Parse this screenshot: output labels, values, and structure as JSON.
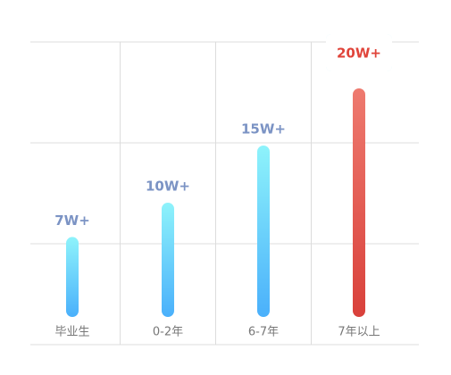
{
  "chart_data": {
    "type": "bar",
    "categories": [
      "毕业生",
      "0-2年",
      "6-7年",
      "7年以上"
    ],
    "values": [
      7,
      10,
      15,
      20
    ],
    "value_labels": [
      "7W+",
      "10W+",
      "15W+",
      "20W+"
    ],
    "bar_colors": [
      [
        "#8ef3fb",
        "#4ab0fb"
      ],
      [
        "#8ef3fb",
        "#4ab0fb"
      ],
      [
        "#8ef3fb",
        "#4ab0fb"
      ],
      [
        "#ee7a6f",
        "#d9413b"
      ]
    ],
    "label_colors": [
      "#7b93c4",
      "#7b93c4",
      "#7b93c4",
      "#e0443a"
    ],
    "grid": true
  }
}
